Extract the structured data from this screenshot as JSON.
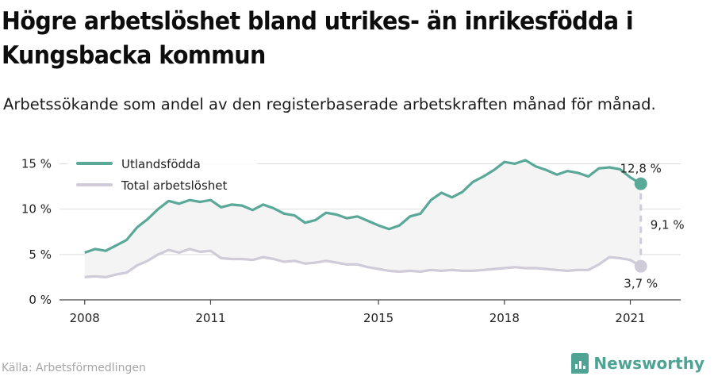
{
  "title": "Högre arbetslöshet bland utrikes- än inrikesfödda i Kungsbacka kommun",
  "subtitle": "Arbetssökande som andel av den registerbaserade arbetskraften månad för månad.",
  "source": "Källa: Arbetsförmedlingen",
  "brand": "Newsworthy",
  "colors": {
    "foreign": "#5aa898",
    "total": "#cfcbd9",
    "band": "#f4f4f4",
    "grid": "#dddddd",
    "brand": "#4fa395"
  },
  "chart_data": {
    "type": "line",
    "title": "Högre arbetslöshet bland utrikes- än inrikesfödda i Kungsbacka kommun",
    "subtitle": "Arbetssökande som andel av den registerbaserade arbetskraften månad för månad.",
    "xlabel": "",
    "ylabel": "",
    "y_unit": "%",
    "ylim": [
      0,
      16
    ],
    "yticks": [
      {
        "v": 0,
        "label": "0 %"
      },
      {
        "v": 5,
        "label": "5 %"
      },
      {
        "v": 10,
        "label": "10 %"
      },
      {
        "v": 15,
        "label": "15 %"
      }
    ],
    "xticks": [
      {
        "v": 2008,
        "label": "2008"
      },
      {
        "v": 2011,
        "label": "2011"
      },
      {
        "v": 2015,
        "label": "2015"
      },
      {
        "v": 2018,
        "label": "2018"
      },
      {
        "v": 2021,
        "label": "2021"
      }
    ],
    "xlim": [
      2007.4,
      2022.2
    ],
    "grid": true,
    "legend": "top-left",
    "x": [
      2008.0,
      2008.25,
      2008.5,
      2008.75,
      2009.0,
      2009.25,
      2009.5,
      2009.75,
      2010.0,
      2010.25,
      2010.5,
      2010.75,
      2011.0,
      2011.25,
      2011.5,
      2011.75,
      2012.0,
      2012.25,
      2012.5,
      2012.75,
      2013.0,
      2013.25,
      2013.5,
      2013.75,
      2014.0,
      2014.25,
      2014.5,
      2014.75,
      2015.0,
      2015.25,
      2015.5,
      2015.75,
      2016.0,
      2016.25,
      2016.5,
      2016.75,
      2017.0,
      2017.25,
      2017.5,
      2017.75,
      2018.0,
      2018.25,
      2018.5,
      2018.75,
      2019.0,
      2019.25,
      2019.5,
      2019.75,
      2020.0,
      2020.25,
      2020.5,
      2020.75,
      2021.0,
      2021.25
    ],
    "series": [
      {
        "name": "Utlandsfödda",
        "values": [
          5.2,
          5.6,
          5.4,
          6.0,
          6.6,
          8.0,
          8.9,
          10.0,
          10.9,
          10.6,
          11.0,
          10.8,
          11.0,
          10.2,
          10.5,
          10.4,
          9.9,
          10.5,
          10.1,
          9.5,
          9.3,
          8.5,
          8.8,
          9.6,
          9.4,
          9.0,
          9.2,
          8.7,
          8.2,
          7.8,
          8.2,
          9.2,
          9.5,
          11.0,
          11.8,
          11.3,
          11.9,
          13.0,
          13.6,
          14.3,
          15.2,
          15.0,
          15.4,
          14.7,
          14.3,
          13.8,
          14.2,
          14.0,
          13.6,
          14.5,
          14.6,
          14.4,
          13.5,
          12.8
        ]
      },
      {
        "name": "Total arbetslöshet",
        "values": [
          2.5,
          2.6,
          2.5,
          2.8,
          3.0,
          3.8,
          4.3,
          5.0,
          5.5,
          5.2,
          5.6,
          5.3,
          5.4,
          4.6,
          4.5,
          4.5,
          4.4,
          4.7,
          4.5,
          4.2,
          4.3,
          4.0,
          4.1,
          4.3,
          4.1,
          3.9,
          3.9,
          3.6,
          3.4,
          3.2,
          3.1,
          3.2,
          3.1,
          3.3,
          3.2,
          3.3,
          3.2,
          3.2,
          3.3,
          3.4,
          3.5,
          3.6,
          3.5,
          3.5,
          3.4,
          3.3,
          3.2,
          3.3,
          3.3,
          3.9,
          4.7,
          4.6,
          4.4,
          3.7
        ]
      }
    ],
    "annotations": {
      "last_foreign": "12,8 %",
      "last_total": "3,7 %",
      "gap": "9,1 %"
    }
  }
}
